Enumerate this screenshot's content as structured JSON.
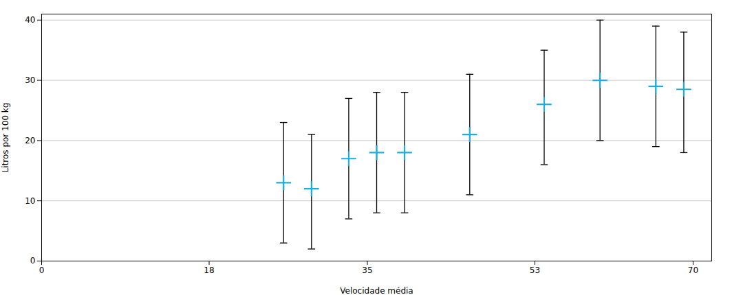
{
  "chart_data": {
    "type": "scatter",
    "xlabel": "Velocidade média",
    "ylabel": "Litros por 100 kg",
    "x": [
      26,
      29,
      33,
      36,
      39,
      46,
      54,
      60,
      66,
      69
    ],
    "values": [
      13,
      12,
      17,
      18,
      18,
      21,
      26,
      30,
      29,
      28.5
    ],
    "error_lower": [
      10,
      10,
      10,
      10,
      10,
      10,
      10,
      10,
      10,
      10.5
    ],
    "error_upper": [
      10,
      9,
      10,
      10,
      10,
      10,
      9,
      10,
      10,
      9.5
    ],
    "xlim": [
      0,
      72
    ],
    "ylim": [
      0,
      41
    ],
    "xticks": [
      0,
      18,
      35,
      53,
      70
    ],
    "yticks": [
      0,
      10,
      20,
      30,
      40
    ],
    "color": "#1AADDE",
    "marker": "plus",
    "grid": "y"
  }
}
